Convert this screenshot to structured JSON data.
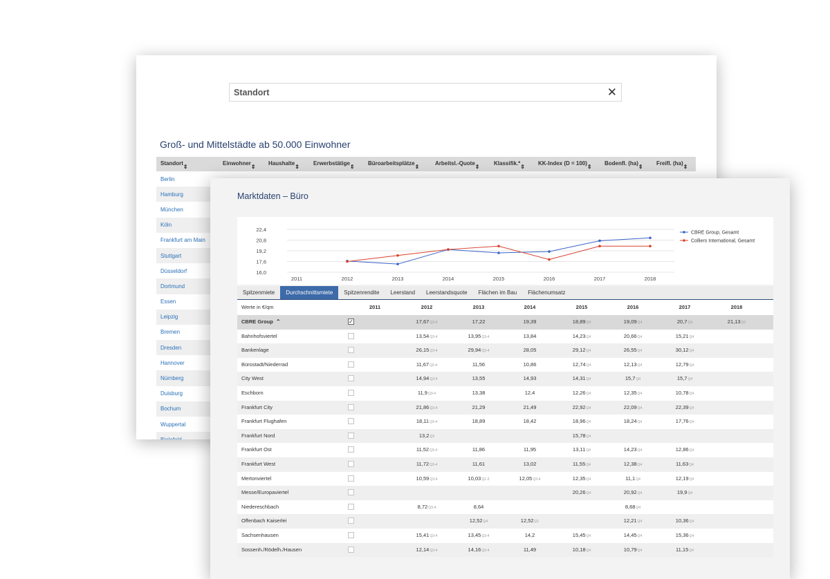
{
  "search": {
    "label": "Standort",
    "close_icon": "close-icon"
  },
  "back_panel": {
    "title": "Groß- und Mittelstädte ab 50.000 Einwohner",
    "columns": [
      "Standort",
      "Einwohner",
      "Haushalte",
      "Erwerbstätige",
      "Büroarbeitsplätze",
      "Arbeitsl.-Quote",
      "Klassifik.*",
      "KK-Index (D = 100)",
      "Bodenfl. (ha)",
      "Freifl. (ha)"
    ],
    "sort_icon": "sort-icon",
    "cities": [
      "Berlin",
      "Hamburg",
      "München",
      "Köln",
      "Frankfurt am Main",
      "Stuttgart",
      "Düsseldorf",
      "Dortmund",
      "Essen",
      "Leipzig",
      "Bremen",
      "Dresden",
      "Hannover",
      "Nürnberg",
      "Duisburg",
      "Bochum",
      "Wuppertal",
      "Bielefeld"
    ]
  },
  "front_panel": {
    "title": "Marktdaten – Büro",
    "tabs": [
      "Spitzenmiete",
      "Durchschnittsmiete",
      "Spitzenrendite",
      "Leerstand",
      "Leerstandsquote",
      "Flächen im Bau",
      "Flächenumsatz"
    ],
    "active_tab": "Durchschnittsmiete",
    "unit_label": "Werte in €/qm",
    "years": [
      "2011",
      "2012",
      "2013",
      "2014",
      "2015",
      "2016",
      "2017",
      "2018"
    ],
    "rows": [
      {
        "name": "CBRE Group",
        "group": true,
        "checked": true,
        "cells": [
          [
            "",
            ""
          ],
          [
            "17,67",
            "Q3-4"
          ],
          [
            "17,22",
            ""
          ],
          [
            "19,39",
            ""
          ],
          [
            "18,89",
            "Q4"
          ],
          [
            "19,09",
            "Q4"
          ],
          [
            "20,7",
            "Q4"
          ],
          [
            "21,13",
            "Q1"
          ]
        ]
      },
      {
        "name": "Bahnhofsviertel",
        "cells": [
          [
            "",
            ""
          ],
          [
            "13,54",
            "Q3-4"
          ],
          [
            "13,95",
            "Q3-4"
          ],
          [
            "13,84",
            ""
          ],
          [
            "14,23",
            "Q4"
          ],
          [
            "20,66",
            "Q4"
          ],
          [
            "15,21",
            "Q4"
          ],
          [
            "",
            ""
          ]
        ]
      },
      {
        "name": "Bankenlage",
        "cells": [
          [
            "",
            ""
          ],
          [
            "26,15",
            "Q3-4"
          ],
          [
            "29,94",
            "Q3-4"
          ],
          [
            "28,05",
            ""
          ],
          [
            "29,12",
            "Q4"
          ],
          [
            "26,55",
            "Q4"
          ],
          [
            "30,12",
            "Q4"
          ],
          [
            "",
            ""
          ]
        ]
      },
      {
        "name": "Bürostadt/Niederrad",
        "cells": [
          [
            "",
            ""
          ],
          [
            "11,67",
            "Q3-4"
          ],
          [
            "11,56",
            ""
          ],
          [
            "10,86",
            ""
          ],
          [
            "12,74",
            "Q4"
          ],
          [
            "12,13",
            "Q4"
          ],
          [
            "12,79",
            "Q4"
          ],
          [
            "",
            ""
          ]
        ]
      },
      {
        "name": "City West",
        "cells": [
          [
            "",
            ""
          ],
          [
            "14,94",
            "Q3-4"
          ],
          [
            "13,55",
            ""
          ],
          [
            "14,93",
            ""
          ],
          [
            "14,31",
            "Q4"
          ],
          [
            "15,7",
            "Q4"
          ],
          [
            "15,7",
            "Q4"
          ],
          [
            "",
            ""
          ]
        ]
      },
      {
        "name": "Eschborn",
        "cells": [
          [
            "",
            ""
          ],
          [
            "11,9",
            "Q3-4"
          ],
          [
            "13,38",
            ""
          ],
          [
            "12,4",
            ""
          ],
          [
            "12,26",
            "Q4"
          ],
          [
            "12,35",
            "Q4"
          ],
          [
            "10,78",
            "Q4"
          ],
          [
            "",
            ""
          ]
        ]
      },
      {
        "name": "Frankfurt City",
        "cells": [
          [
            "",
            ""
          ],
          [
            "21,86",
            "Q3-4"
          ],
          [
            "21,29",
            ""
          ],
          [
            "21,49",
            ""
          ],
          [
            "22,92",
            "Q4"
          ],
          [
            "22,09",
            "Q4"
          ],
          [
            "22,39",
            "Q4"
          ],
          [
            "",
            ""
          ]
        ]
      },
      {
        "name": "Frankfurt Flughafen",
        "cells": [
          [
            "",
            ""
          ],
          [
            "18,11",
            "Q3-4"
          ],
          [
            "18,89",
            ""
          ],
          [
            "18,42",
            ""
          ],
          [
            "18,96",
            "Q4"
          ],
          [
            "18,24",
            "Q4"
          ],
          [
            "17,76",
            "Q4"
          ],
          [
            "",
            ""
          ]
        ]
      },
      {
        "name": "Frankfurt Nord",
        "cells": [
          [
            "",
            ""
          ],
          [
            "13,2",
            "Q3"
          ],
          [
            "",
            ""
          ],
          [
            "",
            ""
          ],
          [
            "15,78",
            "Q4"
          ],
          [
            "",
            ""
          ],
          [
            "",
            ""
          ],
          [
            "",
            ""
          ]
        ]
      },
      {
        "name": "Frankfurt Ost",
        "cells": [
          [
            "",
            ""
          ],
          [
            "11,52",
            "Q3-4"
          ],
          [
            "11,86",
            ""
          ],
          [
            "11,95",
            ""
          ],
          [
            "13,11",
            "Q4"
          ],
          [
            "14,23",
            "Q4"
          ],
          [
            "12,86",
            "Q4"
          ],
          [
            "",
            ""
          ]
        ]
      },
      {
        "name": "Frankfurt West",
        "cells": [
          [
            "",
            ""
          ],
          [
            "11,72",
            "Q3-4"
          ],
          [
            "11,61",
            ""
          ],
          [
            "13,02",
            ""
          ],
          [
            "11,55",
            "Q4"
          ],
          [
            "12,38",
            "Q4"
          ],
          [
            "11,63",
            "Q4"
          ],
          [
            "",
            ""
          ]
        ]
      },
      {
        "name": "Mertonviertel",
        "cells": [
          [
            "",
            ""
          ],
          [
            "10,59",
            "Q3-4"
          ],
          [
            "10,03",
            "Q1-3"
          ],
          [
            "12,05",
            "Q3-4"
          ],
          [
            "12,35",
            "Q4"
          ],
          [
            "11,1",
            "Q4"
          ],
          [
            "12,19",
            "Q4"
          ],
          [
            "",
            ""
          ]
        ]
      },
      {
        "name": "Messe/Europaviertel",
        "cells": [
          [
            "",
            ""
          ],
          [
            "",
            ""
          ],
          [
            "",
            ""
          ],
          [
            "",
            ""
          ],
          [
            "20,26",
            "Q4"
          ],
          [
            "20,92",
            "Q4"
          ],
          [
            "19,9",
            "Q4"
          ],
          [
            "",
            ""
          ]
        ]
      },
      {
        "name": "Niedereschbach",
        "cells": [
          [
            "",
            ""
          ],
          [
            "8,72",
            "Q3-4"
          ],
          [
            "8,64",
            ""
          ],
          [
            "",
            ""
          ],
          [
            "",
            ""
          ],
          [
            "8,68",
            "Q4"
          ],
          [
            "",
            ""
          ],
          [
            "",
            ""
          ]
        ]
      },
      {
        "name": "Offenbach Kaiserlei",
        "cells": [
          [
            "",
            ""
          ],
          [
            "",
            ""
          ],
          [
            "12,52",
            "Q4"
          ],
          [
            "12,52",
            "Q1"
          ],
          [
            "",
            ""
          ],
          [
            "12,21",
            "Q4"
          ],
          [
            "10,36",
            "Q4"
          ],
          [
            "",
            ""
          ]
        ]
      },
      {
        "name": "Sachsenhausen",
        "cells": [
          [
            "",
            ""
          ],
          [
            "15,41",
            "Q3-4"
          ],
          [
            "13,45",
            "Q3-4"
          ],
          [
            "14,2",
            ""
          ],
          [
            "15,45",
            "Q4"
          ],
          [
            "14,45",
            "Q4"
          ],
          [
            "15,36",
            "Q4"
          ],
          [
            "",
            ""
          ]
        ]
      },
      {
        "name": "Sossenh./Rödelh./Hausen",
        "cells": [
          [
            "",
            ""
          ],
          [
            "12,14",
            "Q3-4"
          ],
          [
            "14,16",
            "Q3-4"
          ],
          [
            "11,49",
            ""
          ],
          [
            "10,18",
            "Q4"
          ],
          [
            "10,79",
            "Q4"
          ],
          [
            "11,15",
            "Q4"
          ],
          [
            "",
            ""
          ]
        ]
      }
    ]
  },
  "chart_data": {
    "type": "line",
    "x": [
      "2011",
      "2012",
      "2013",
      "2014",
      "2015",
      "2016",
      "2017",
      "2018"
    ],
    "ylim": [
      16.0,
      22.4
    ],
    "yticks": [
      "22,4",
      "20,8",
      "19,2",
      "17,6",
      "16,0"
    ],
    "legend_position": "right",
    "series": [
      {
        "name": "CBRE Group, Gesamt",
        "color": "#3a64c8",
        "values": [
          null,
          17.67,
          17.22,
          19.39,
          18.89,
          19.09,
          20.7,
          21.13
        ]
      },
      {
        "name": "Colliers International, Gesamt",
        "color": "#d9402b",
        "values": [
          null,
          17.6,
          18.5,
          19.4,
          19.9,
          17.9,
          19.9,
          19.9
        ]
      }
    ]
  }
}
